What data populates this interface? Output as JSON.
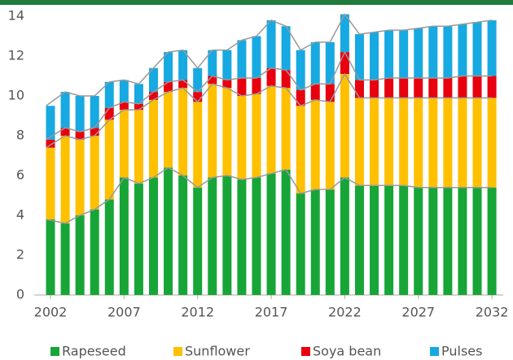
{
  "chart_data": {
    "type": "bar",
    "categories": [
      "2002",
      null,
      null,
      null,
      null,
      "2007",
      null,
      null,
      null,
      null,
      "2012",
      null,
      null,
      null,
      null,
      "2017",
      null,
      null,
      null,
      null,
      "2022",
      null,
      null,
      null,
      null,
      "2027",
      null,
      null,
      null,
      null,
      "2032"
    ],
    "series": [
      {
        "name": "Rapeseed",
        "color": "#17a537",
        "values": [
          3.8,
          3.6,
          4.0,
          4.3,
          4.8,
          5.9,
          5.6,
          5.9,
          6.4,
          6.0,
          5.4,
          5.9,
          6.0,
          5.8,
          5.9,
          6.1,
          6.3,
          5.1,
          5.3,
          5.3,
          5.9,
          5.5,
          5.5,
          5.5,
          5.5,
          5.4,
          5.4,
          5.4,
          5.4,
          5.4,
          5.4
        ]
      },
      {
        "name": "Sunflower",
        "color": "#ffc000",
        "values": [
          3.6,
          4.4,
          3.8,
          3.7,
          4.0,
          3.4,
          3.7,
          3.9,
          3.8,
          4.4,
          4.3,
          4.7,
          4.4,
          4.2,
          4.2,
          4.4,
          4.1,
          4.4,
          4.5,
          4.4,
          5.2,
          4.4,
          4.4,
          4.4,
          4.4,
          4.5,
          4.5,
          4.5,
          4.5,
          4.5,
          4.5
        ]
      },
      {
        "name": "Soya bean",
        "color": "#e8000f",
        "values": [
          0.4,
          0.4,
          0.4,
          0.4,
          0.6,
          0.4,
          0.3,
          0.4,
          0.5,
          0.4,
          0.5,
          0.4,
          0.4,
          0.9,
          0.8,
          0.9,
          0.9,
          0.8,
          0.8,
          0.9,
          1.1,
          0.9,
          0.9,
          1.0,
          1.0,
          1.0,
          1.0,
          1.0,
          1.1,
          1.1,
          1.1
        ]
      },
      {
        "name": "Pulses",
        "color": "#17a9e1",
        "values": [
          1.7,
          1.8,
          1.8,
          1.6,
          1.3,
          1.1,
          1.0,
          1.2,
          1.5,
          1.5,
          1.2,
          1.3,
          1.5,
          1.9,
          2.1,
          2.4,
          2.2,
          2.0,
          2.1,
          2.1,
          1.9,
          2.3,
          2.4,
          2.4,
          2.4,
          2.5,
          2.6,
          2.6,
          2.6,
          2.7,
          2.8
        ]
      }
    ],
    "ylim": [
      0,
      14
    ],
    "yticks": [
      0,
      2,
      4,
      6,
      8,
      10,
      12,
      14
    ],
    "grid": false,
    "legend": "bottom"
  }
}
